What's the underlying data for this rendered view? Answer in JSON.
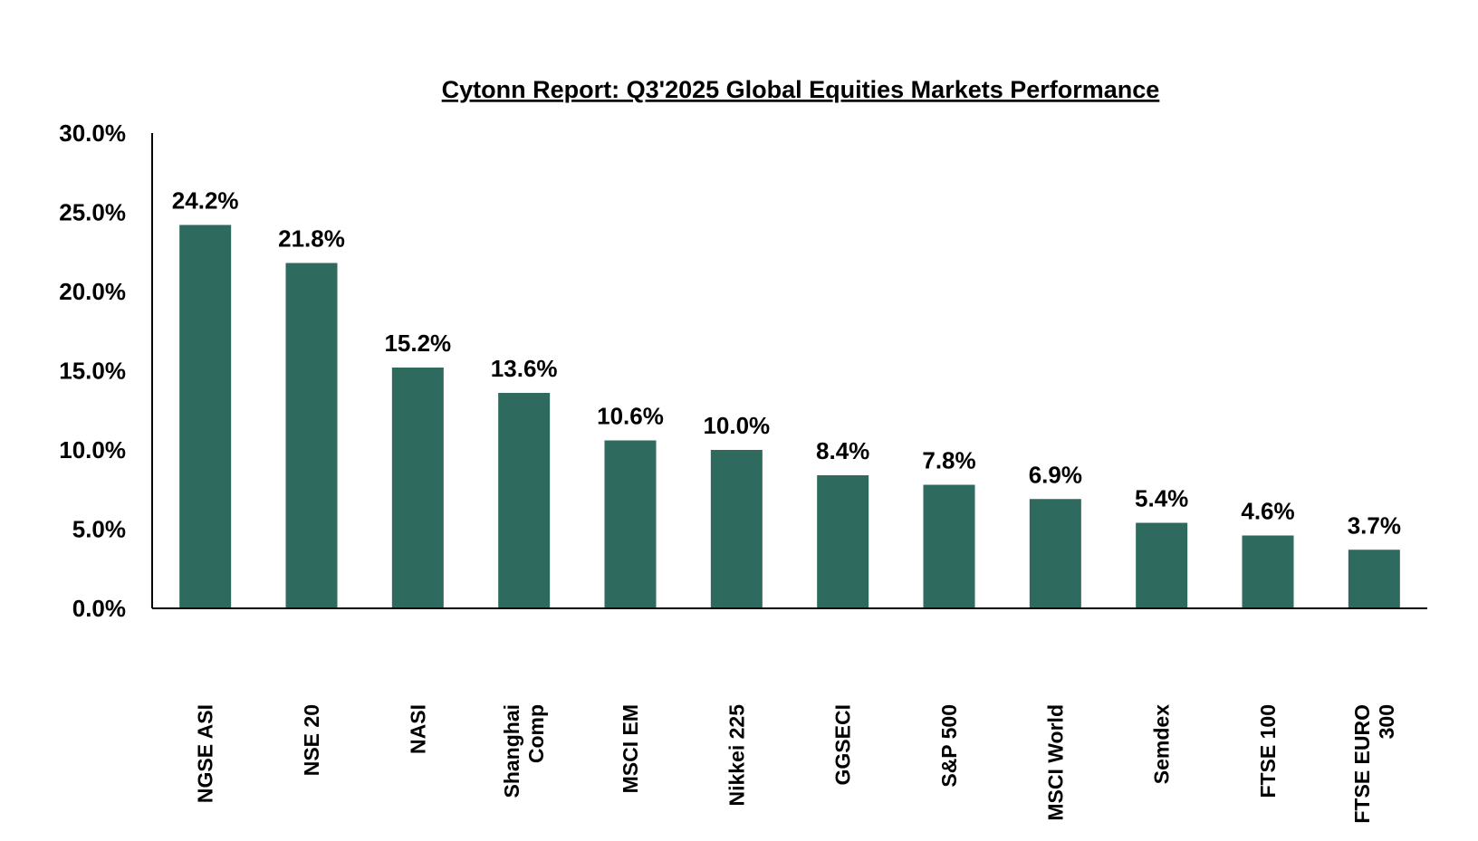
{
  "chart_data": {
    "type": "bar",
    "title": "Cytonn Report: Q3'2025 Global Equities Markets Performance",
    "xlabel": "",
    "ylabel": "",
    "categories": [
      [
        "NGSE ASI"
      ],
      [
        "NSE 20"
      ],
      [
        "NASI"
      ],
      [
        "Shanghai",
        "Comp"
      ],
      [
        "MSCI EM"
      ],
      [
        "Nikkei 225"
      ],
      [
        "GGSECI"
      ],
      [
        "S&P 500"
      ],
      [
        "MSCI World"
      ],
      [
        "Semdex"
      ],
      [
        "FTSE 100"
      ],
      [
        "FTSE EURO",
        "300"
      ]
    ],
    "values": [
      24.2,
      21.8,
      15.2,
      13.6,
      10.6,
      10.0,
      8.4,
      7.8,
      6.9,
      5.4,
      4.6,
      3.7
    ],
    "data_labels": [
      "24.2%",
      "21.8%",
      "15.2%",
      "13.6%",
      "10.6%",
      "10.0%",
      "8.4%",
      "7.8%",
      "6.9%",
      "5.4%",
      "4.6%",
      "3.7%"
    ],
    "ylim": [
      0,
      30
    ],
    "yticks": [
      0,
      5,
      10,
      15,
      20,
      25,
      30
    ],
    "ytick_labels": [
      "0.0%",
      "5.0%",
      "10.0%",
      "15.0%",
      "20.0%",
      "25.0%",
      "30.0%"
    ],
    "grid": false,
    "legend": "none",
    "bar_color": "#2e6b5e"
  }
}
